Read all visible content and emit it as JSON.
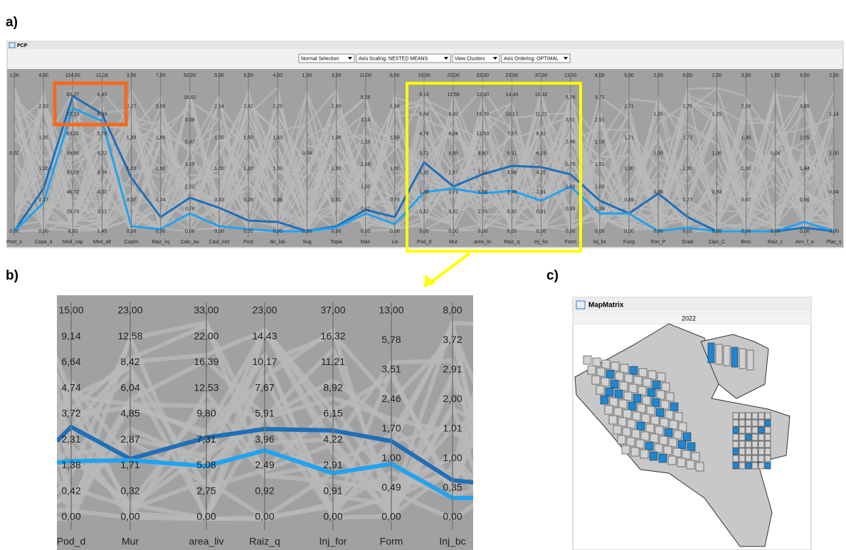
{
  "panels": {
    "a": {
      "label": "a)",
      "window": {
        "title": "PCP",
        "controls": [
          "Normal Selection",
          "Axis Scaling: NESTED MEANS",
          "View Clusters",
          "Axis Ordering: OPTIMAL"
        ],
        "axes": [
          {
            "name": "Pont_o",
            "ticks": [
              "1,00",
              "0,02",
              "0,00"
            ]
          },
          {
            "name": "Copa_d",
            "ticks": [
              "4,00",
              "2,33",
              "1,35",
              "1,00",
              "0,17",
              "0,00"
            ]
          },
          {
            "name": "Med_cap",
            "ticks": [
              "114,60",
              "83,27",
              "72,13",
              "63,02",
              "56,08",
              "50,09",
              "46,72",
              "29,73",
              "8,80"
            ]
          },
          {
            "name": "Med_alt",
            "ticks": [
              "11,18",
              "8,95",
              "6,49",
              "5,76",
              "5,22",
              "4,54",
              "4,02",
              "3,11",
              "1,45"
            ]
          },
          {
            "name": "Cupim",
            "ticks": [
              "3,00",
              "2,27",
              "1,39",
              "1,00",
              "0,37",
              "0,00"
            ]
          },
          {
            "name": "Raiz_inj",
            "ticks": [
              "7,00",
              "3,00",
              "1,69",
              "1,00",
              "0,24",
              "0,00"
            ]
          },
          {
            "name": "Calc_au",
            "ticks": [
              "52,00",
              "18,62",
              "9,08",
              "5,47",
              "3,09",
              "2,02",
              "0,78",
              "0,00"
            ]
          },
          {
            "name": "Caul_incl",
            "ticks": [
              "5,00",
              "2,54",
              "1,50",
              "1,00",
              "0,33",
              "0,00"
            ]
          },
          {
            "name": "Post",
            "ticks": [
              "5,00",
              "2,42",
              "1,50",
              "1,00",
              "0,28",
              "0,00"
            ]
          },
          {
            "name": "Bc_lob",
            "ticks": [
              "4,00",
              "2,25",
              "1,43",
              "1,00",
              "0,36",
              "0,00"
            ]
          },
          {
            "name": "Sug",
            "ticks": [
              "1,00",
              "0,04",
              "0,00"
            ]
          },
          {
            "name": "Topia",
            "ticks": [
              "3,00",
              "2,80",
              "1,98",
              "1,00",
              "0,51",
              "0,00"
            ]
          },
          {
            "name": "Man",
            "ticks": [
              "11,00",
              "5,25",
              "3,14",
              "2,15",
              "1,65",
              "1,00",
              "0,62",
              "0,00"
            ]
          },
          {
            "name": "Lix",
            "ticks": [
              "6,00",
              "2,58",
              "1,58",
              "1,00",
              "0,73",
              "0,00"
            ]
          },
          {
            "name": "Pod_d",
            "ticks": [
              "15,00",
              "9,14",
              "6,64",
              "4,74",
              "3,72",
              "2,31",
              "1,38",
              "0,42",
              "0,00"
            ]
          },
          {
            "name": "Mur",
            "ticks": [
              "23,00",
              "12,58",
              "8,42",
              "6,04",
              "4,85",
              "2,87",
              "1,71",
              "0,32",
              "0,00"
            ]
          },
          {
            "name": "area_liv",
            "ticks": [
              "33,00",
              "22,00",
              "16,39",
              "12,53",
              "9,80",
              "7,31",
              "5,08",
              "2,75",
              "0,00"
            ]
          },
          {
            "name": "Raiz_q",
            "ticks": [
              "23,00",
              "14,43",
              "10,17",
              "7,67",
              "5,91",
              "3,96",
              "2,49",
              "0,92",
              "0,00"
            ]
          },
          {
            "name": "Inj_for",
            "ticks": [
              "37,00",
              "16,32",
              "11,21",
              "8,92",
              "6,15",
              "4,22",
              "2,91",
              "0,91",
              "0,00"
            ]
          },
          {
            "name": "Form",
            "ticks": [
              "13,00",
              "5,78",
              "3,51",
              "2,46",
              "1,70",
              "1,00",
              "0,49",
              "0,00"
            ]
          },
          {
            "name": "Inj_bc",
            "ticks": [
              "8,00",
              "3,72",
              "2,91",
              "2,00",
              "1,01",
              "1,00",
              "0,35",
              "0,00"
            ]
          },
          {
            "name": "Fung",
            "ticks": [
              "5,00",
              "2,71",
              "1,71",
              "1,00",
              "0,49",
              "0,00"
            ]
          },
          {
            "name": "Env_P",
            "ticks": [
              "2,00",
              "1,25",
              "1,00",
              "0,88",
              "0,00"
            ]
          },
          {
            "name": "Grad",
            "ticks": [
              "5,00",
              "2,75",
              "1,72",
              "1,00",
              "0,27",
              "0,00"
            ]
          },
          {
            "name": "Cipo_C",
            "ticks": [
              "2,00",
              "1,25",
              "1,00",
              "0,93",
              "0,00"
            ]
          },
          {
            "name": "Broc",
            "ticks": [
              "3,00",
              "2,50",
              "1,30",
              "1,00",
              "0,07",
              "0,00"
            ]
          },
          {
            "name": "Raiz_c",
            "ticks": [
              "1,00",
              "0,04",
              "0,00"
            ]
          },
          {
            "name": "Anv_f_a",
            "ticks": [
              "9,00",
              "3,89",
              "2,05",
              "1,44",
              "0,66",
              "0,00"
            ]
          },
          {
            "name": "Plac_s",
            "ticks": [
              "2,00",
              "1,14",
              "1,00",
              "0,04",
              "0,00"
            ]
          }
        ]
      }
    },
    "b": {
      "label": "b)"
    },
    "c": {
      "label": "c)",
      "window": {
        "title": "MapMatrix",
        "year": "2022"
      }
    }
  }
}
